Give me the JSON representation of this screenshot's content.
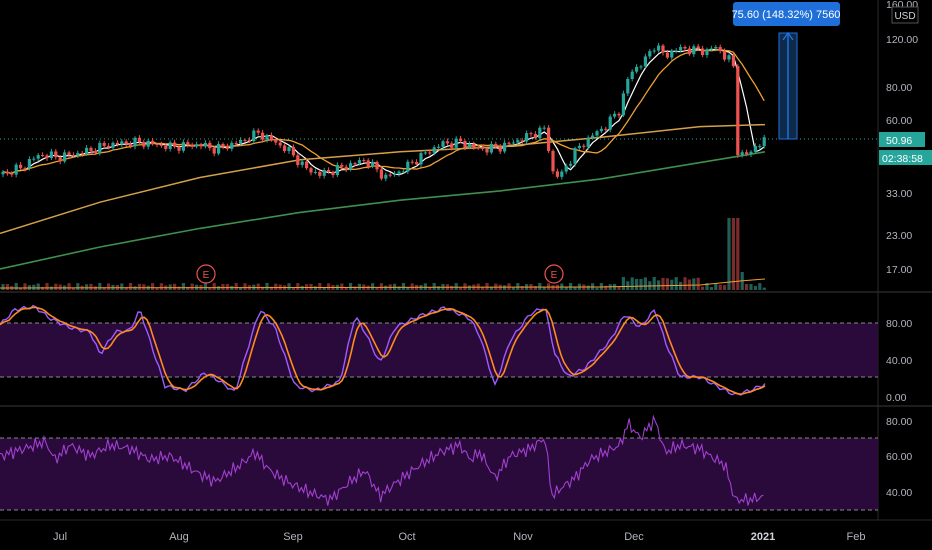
{
  "price_axis": {
    "currency": "USD",
    "ticks": [
      "160.00",
      "120.00",
      "80.00",
      "60.00",
      "33.00",
      "23.00",
      "17.00"
    ],
    "tick_values": [
      160,
      120,
      80,
      60,
      33,
      23,
      17
    ],
    "scale": "log",
    "range": [
      12.5,
      165
    ]
  },
  "last_price_label": "50.96",
  "countdown_label": "02:38:58",
  "measure_label": "75.60 (148.32%) 7560",
  "stoch_axis": {
    "ticks": [
      "80.00",
      "40.00",
      "0.00"
    ],
    "tick_values": [
      80,
      40,
      0
    ],
    "bands": [
      80,
      20
    ]
  },
  "rsi_axis": {
    "ticks": [
      "80.00",
      "60.00",
      "40.00"
    ],
    "tick_values": [
      80,
      60,
      40
    ],
    "bands": [
      70,
      30
    ]
  },
  "time_axis": {
    "labels": [
      "Jul",
      "Aug",
      "Sep",
      "Oct",
      "Nov",
      "Dec",
      "2021",
      "Feb"
    ]
  },
  "earnings_markers": [
    "E",
    "E"
  ],
  "colors": {
    "up": "#26a69a",
    "down": "#ef5350",
    "sma_short": "#ffffff",
    "sma_mid": "#f0a030",
    "sma_long": "#d4a04a",
    "sma_200": "#3f8f4f",
    "stoch_k": "#9c5cff",
    "stoch_d": "#ff8a1f",
    "rsi": "#a040d0",
    "band_fill": "#2a0a3a",
    "measure": "#1e6fd9",
    "last_price": "#26a69a"
  },
  "chart_data": {
    "type": "candlestick",
    "note": "",
    "price_sample": {
      "dates": [
        "Jul",
        "Aug",
        "Sep",
        "Oct",
        "Nov",
        "Dec",
        "2021"
      ],
      "close": [
        45,
        52,
        41,
        47,
        50,
        105,
        50.96
      ]
    },
    "measure": {
      "change": 75.6,
      "percent": 148.32
    },
    "stoch_bands": [
      80,
      20
    ],
    "rsi_bands": [
      70,
      30
    ]
  }
}
